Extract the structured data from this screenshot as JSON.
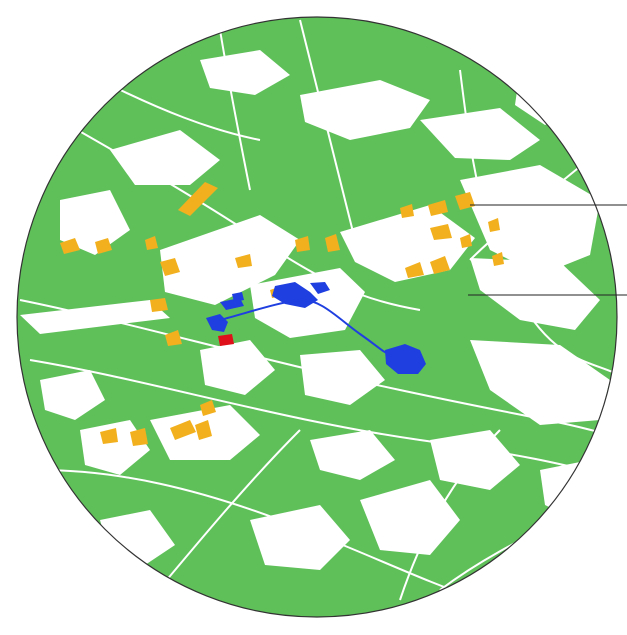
{
  "map": {
    "colors": {
      "background": "#ffffff",
      "vegetation": "#5fc05a",
      "clearings": "#ffffff",
      "industrial": "#1f3fe0",
      "agricultural": "#f2b01e",
      "highlight": "#e0101a",
      "boundary": "#333333",
      "leader_lines": "#222222"
    },
    "layers": [
      "vegetation-cover",
      "clearings-network",
      "industrial-zones",
      "agricultural-parcels",
      "highlight-site",
      "boundary-circle",
      "leader-lines"
    ]
  }
}
